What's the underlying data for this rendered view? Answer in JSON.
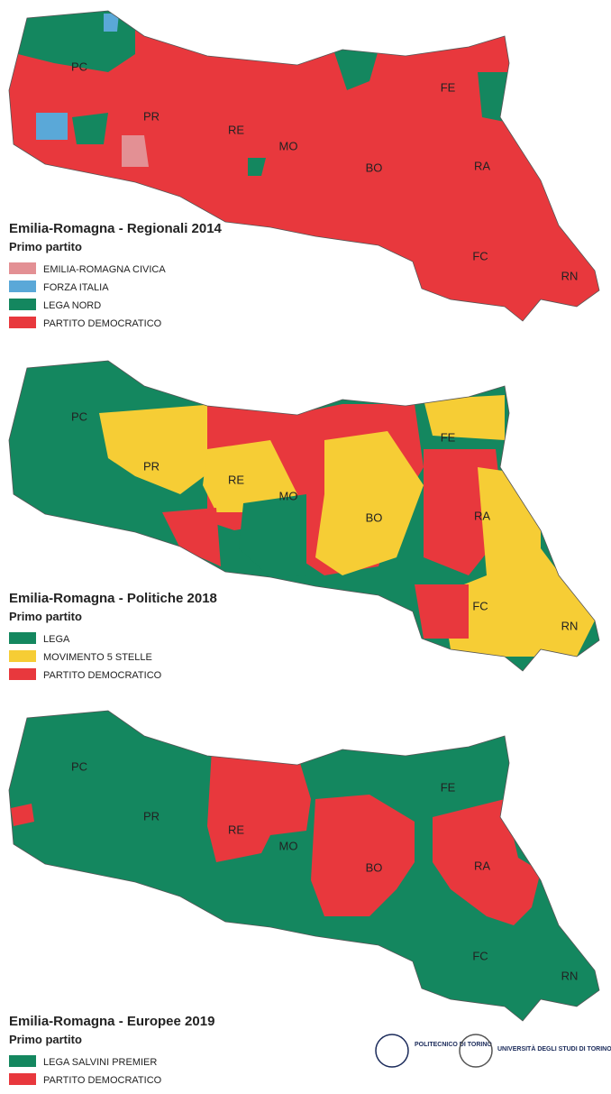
{
  "maps": [
    {
      "title": "Emilia-Romagna - Regionali 2014",
      "subtitle": "Primo partito",
      "legend": [
        {
          "label": "EMILIA-ROMAGNA CIVICA",
          "color": "#e39094"
        },
        {
          "label": "FORZA ITALIA",
          "color": "#5aa8d8"
        },
        {
          "label": "LEGA NORD",
          "color": "#14875f"
        },
        {
          "label": "PARTITO DEMOCRATICO",
          "color": "#e8383d"
        }
      ],
      "provinces": [
        "PC",
        "PR",
        "RE",
        "MO",
        "BO",
        "FE",
        "RA",
        "FC",
        "RN"
      ]
    },
    {
      "title": "Emilia-Romagna - Politiche 2018",
      "subtitle": "Primo partito",
      "legend": [
        {
          "label": "LEGA",
          "color": "#14875f"
        },
        {
          "label": "MOVIMENTO 5 STELLE",
          "color": "#f6cd35"
        },
        {
          "label": "PARTITO DEMOCRATICO",
          "color": "#e8383d"
        }
      ],
      "provinces": [
        "PC",
        "PR",
        "RE",
        "MO",
        "BO",
        "FE",
        "RA",
        "FC",
        "RN"
      ]
    },
    {
      "title": "Emilia-Romagna - Europee 2019",
      "subtitle": "Primo partito",
      "legend": [
        {
          "label": "LEGA SALVINI PREMIER",
          "color": "#14875f"
        },
        {
          "label": "PARTITO DEMOCRATICO",
          "color": "#e8383d"
        }
      ],
      "provinces": [
        "PC",
        "PR",
        "RE",
        "MO",
        "BO",
        "FE",
        "RA",
        "FC",
        "RN"
      ]
    }
  ],
  "logos": [
    "POLITECNICO DI TORINO",
    "UNIVERSITÀ DEGLI STUDI DI TORINO"
  ]
}
